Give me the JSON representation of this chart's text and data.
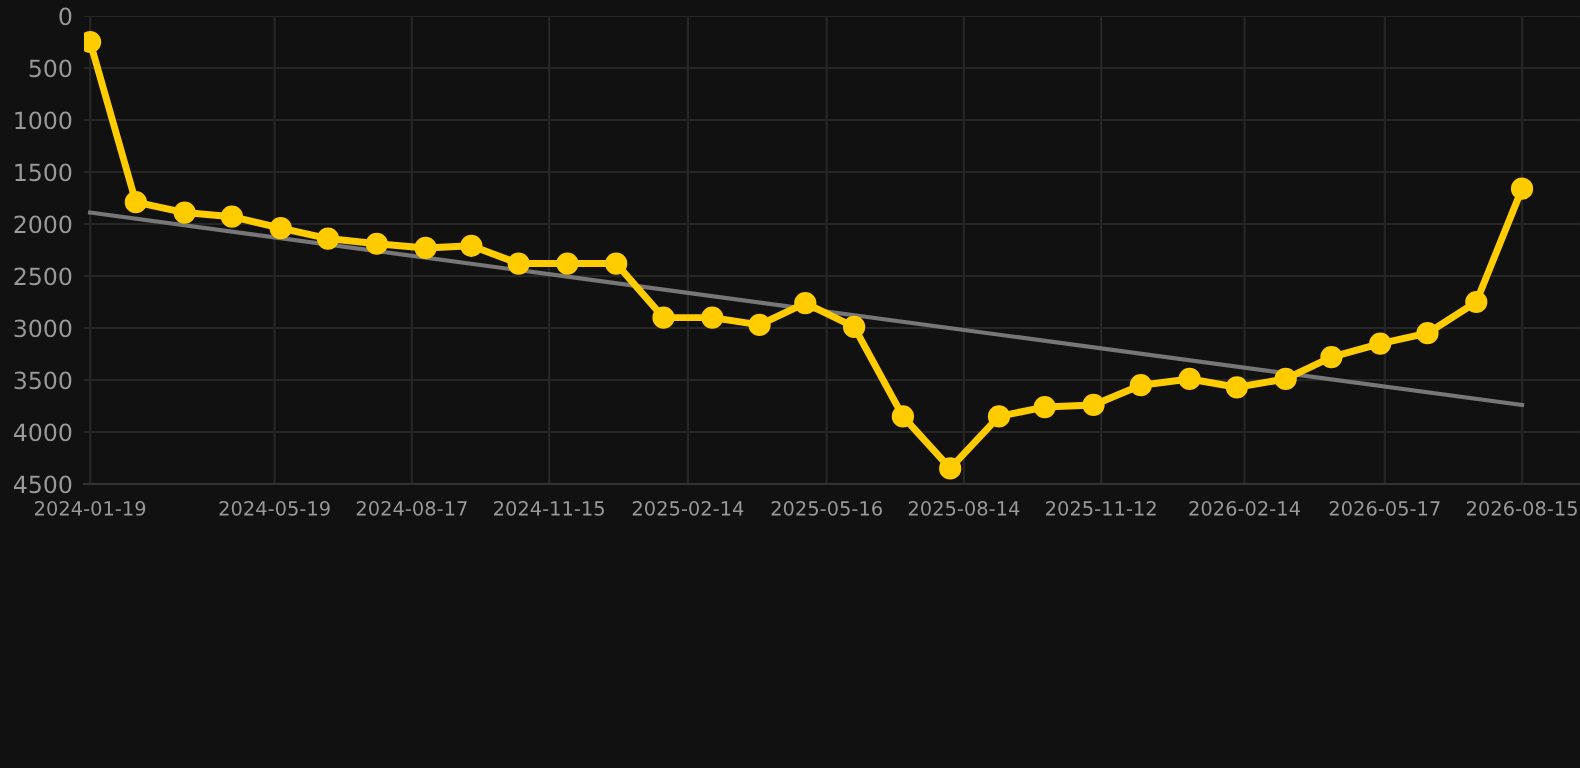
{
  "chart_data": {
    "type": "line",
    "x": [
      "2024-01-19",
      "2024-02-18",
      "2024-03-21",
      "2024-04-21",
      "2024-05-23",
      "2024-06-23",
      "2024-07-25",
      "2024-08-26",
      "2024-09-25",
      "2024-10-26",
      "2024-11-27",
      "2024-12-29",
      "2025-01-29",
      "2025-03-02",
      "2025-04-02",
      "2025-05-02",
      "2025-06-03",
      "2025-07-05",
      "2025-08-05",
      "2025-09-06",
      "2025-10-06",
      "2025-11-07",
      "2025-12-08",
      "2026-01-09",
      "2026-02-09",
      "2026-03-13",
      "2026-04-12",
      "2026-05-14",
      "2026-06-14",
      "2026-07-16",
      "2026-08-15"
    ],
    "series": [
      {
        "color": "#ffcc00",
        "marker": "circle",
        "values": [
          250,
          1790,
          1890,
          1930,
          2040,
          2140,
          2190,
          2230,
          2210,
          2380,
          2380,
          2380,
          2900,
          2900,
          2970,
          2760,
          2990,
          3850,
          4350,
          3850,
          3760,
          3740,
          3550,
          3490,
          3570,
          3490,
          3280,
          3150,
          3050,
          2750,
          1660
        ]
      },
      {
        "type": "line",
        "color": "#777777",
        "marker": "none",
        "x": [
          "2024-01-19",
          "2026-08-15"
        ],
        "values": [
          1890,
          3740
        ]
      }
    ],
    "xlim": [
      "2024-01-15",
      "2026-09-22"
    ],
    "xticks": [
      "2024-01-19",
      "2024-05-19",
      "2024-08-17",
      "2024-11-15",
      "2025-02-14",
      "2025-05-16",
      "2025-08-14",
      "2025-11-12",
      "2026-02-14",
      "2026-05-17",
      "2026-08-15"
    ],
    "ylim": [
      4500,
      0
    ],
    "yticks": [
      0,
      500,
      1000,
      1500,
      2000,
      2500,
      3000,
      3500,
      4000,
      4500
    ],
    "grid": true
  }
}
